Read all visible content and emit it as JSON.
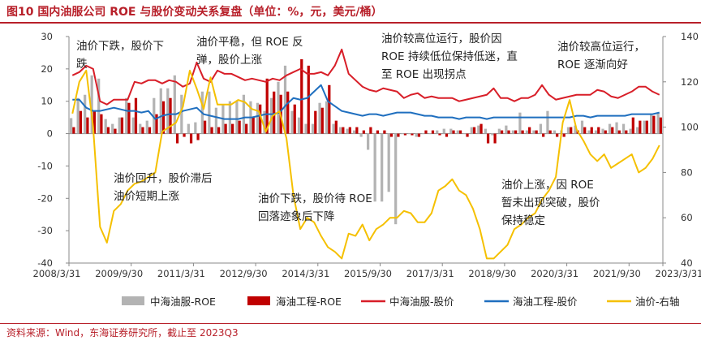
{
  "title": "图10  国内油服公司 ROE 与股价变动关系复盘（单位：%，元，美元/桶）",
  "source": "资料来源：Wind，东海证券研究所，截止至 2023Q3",
  "colors": {
    "accent": "#b8202a",
    "cosl_roe": "#b3b3b3",
    "cooec_roe": "#c00000",
    "cosl_price": "#d81e28",
    "cooec_price": "#1f6fbf",
    "oil": "#f5c000"
  },
  "chart_data": {
    "type": "bar",
    "title": "国内油服公司 ROE 与股价变动关系复盘",
    "x_ticks": [
      "2008/3/31",
      "2009/9/30",
      "2011/3/31",
      "2012/9/30",
      "2014/3/31",
      "2015/9/30",
      "2017/3/31",
      "2018/9/30",
      "2020/3/31",
      "2021/9/30",
      "2023/3/31"
    ],
    "y_left": {
      "min": -40,
      "max": 30,
      "ticks": [
        30,
        20,
        10,
        0,
        -10,
        -20,
        -30,
        -40
      ]
    },
    "y_right": {
      "min": 40,
      "max": 140,
      "ticks": [
        140,
        120,
        100,
        80,
        60,
        40
      ]
    },
    "series": [
      {
        "name": "中海油服-ROE",
        "kind": "bar",
        "axis": "left",
        "values": [
          4.8,
          11,
          12,
          18,
          17,
          4.5,
          3,
          5,
          11,
          5,
          3,
          4,
          11,
          14,
          14,
          18,
          12,
          3,
          3.5,
          13,
          13,
          8,
          9,
          10,
          10,
          12,
          10,
          9.5,
          7,
          11,
          16,
          21,
          7,
          5,
          3,
          3,
          9.5,
          10,
          3,
          2,
          1.5,
          1,
          -1,
          -5,
          -21,
          -21,
          -18,
          -28,
          0,
          0,
          -1,
          0,
          0,
          1,
          1.5,
          1.5,
          1,
          0,
          2,
          2.5,
          1.5,
          -0.5,
          1.5,
          2.5,
          1,
          6.5,
          1,
          1,
          3,
          7,
          1,
          1,
          2,
          2.5,
          4,
          1,
          1,
          1.5,
          3,
          3.5,
          3,
          1.5,
          2,
          4,
          6,
          6.5
        ]
      },
      {
        "name": "海油工程-ROE",
        "kind": "bar",
        "axis": "left",
        "values": [
          2,
          7,
          5,
          7,
          6,
          2,
          1.5,
          5,
          9.5,
          11,
          2,
          2,
          6,
          10,
          11,
          -3,
          -1,
          -3,
          -2,
          4,
          2,
          2,
          3,
          3,
          4,
          3,
          5,
          9,
          17,
          13,
          12,
          13,
          9,
          23,
          21,
          7,
          8,
          15,
          4,
          2,
          2,
          2,
          1,
          2,
          1,
          1,
          -1,
          -1,
          -0.5,
          -0.5,
          -1,
          1,
          1,
          -0.5,
          -1,
          1,
          1,
          -1,
          2,
          3,
          -3,
          -3,
          1,
          1,
          1,
          1,
          2,
          1,
          -1,
          1,
          -1,
          -1,
          2,
          1,
          2,
          2,
          2,
          1,
          2,
          1,
          1,
          5,
          4,
          4,
          5.5,
          5
        ]
      },
      {
        "name": "中海油服-股价",
        "kind": "line",
        "axis": "left",
        "values": [
          18,
          19,
          21,
          20,
          10,
          9,
          10.5,
          10.5,
          10.5,
          16,
          15.5,
          16.5,
          16.5,
          15.5,
          16.5,
          16,
          14.5,
          15.5,
          22,
          17,
          16,
          19.5,
          18.5,
          18.5,
          17.5,
          16.5,
          17,
          16.5,
          16,
          17,
          16.5,
          18,
          19,
          20,
          18.5,
          18.5,
          19,
          18,
          21,
          26,
          18.5,
          16.5,
          14.5,
          13.5,
          13,
          14,
          13.5,
          13,
          11,
          12,
          12.5,
          11,
          11.5,
          11,
          11,
          11,
          10,
          10.5,
          11,
          11.5,
          12,
          14,
          11,
          11,
          10,
          11,
          11,
          12,
          15,
          12,
          10.5,
          11,
          11.5,
          12,
          12,
          12,
          13.5,
          13,
          11.5,
          11,
          12,
          13,
          14.5,
          14.5,
          13,
          12
        ]
      },
      {
        "name": "海油工程-股价",
        "kind": "line",
        "axis": "left",
        "values": [
          10.5,
          10.5,
          8,
          7,
          7,
          7.5,
          8,
          7.5,
          7,
          7,
          6.5,
          7,
          4.5,
          5.5,
          6,
          6,
          7,
          7.5,
          8,
          6,
          5.5,
          5,
          4.5,
          4.5,
          4.5,
          5,
          5,
          5.5,
          6,
          6,
          6.5,
          9,
          11,
          10.5,
          11,
          13,
          15,
          10,
          8.5,
          7,
          6.5,
          6,
          5.5,
          6,
          6,
          5.5,
          6,
          6.5,
          6.5,
          6.5,
          6,
          5.5,
          5.5,
          5,
          5,
          5,
          4.5,
          5,
          5,
          5,
          4.5,
          5,
          5,
          5,
          5,
          5,
          5,
          5,
          5,
          5,
          5,
          5,
          5,
          5.5,
          5.5,
          5,
          5.5,
          5.5,
          5.5,
          5.5,
          5.5,
          6,
          6,
          6,
          6,
          6.5
        ]
      },
      {
        "name": "油价-右轴",
        "kind": "line",
        "axis": "right",
        "values": [
          106,
          120,
          125,
          100,
          56,
          49,
          63,
          66,
          72,
          75,
          76,
          78,
          80,
          98,
          100,
          102,
          109,
          125,
          117,
          108,
          122,
          110,
          110,
          110,
          112,
          111,
          108,
          107,
          98,
          105,
          107,
          95,
          70,
          55,
          60,
          58,
          52,
          47,
          45,
          42,
          53,
          52,
          57,
          50,
          55,
          57,
          60,
          60,
          63,
          62,
          58,
          58,
          62,
          72,
          74,
          77,
          72,
          70,
          64,
          55,
          42,
          42,
          45,
          48,
          55,
          57,
          60,
          62,
          68,
          72,
          78,
          102,
          112,
          99,
          94,
          88,
          85,
          88,
          82,
          84,
          86,
          88,
          80,
          82,
          86,
          92
        ]
      }
    ]
  },
  "annotations": [
    {
      "id": "a1",
      "lines": [
        "油价下跌，股价下",
        "跌"
      ]
    },
    {
      "id": "a2",
      "lines": [
        "油价平稳，但 ROE 反",
        "弹，股价上涨"
      ]
    },
    {
      "id": "a3",
      "lines": [
        "油价较高位运行，股价因",
        "ROE 持续低位保持低迷，直",
        "至 ROE 出现拐点"
      ]
    },
    {
      "id": "a4",
      "lines": [
        "油价较高位运行，",
        "ROE 逐渐向好"
      ]
    },
    {
      "id": "a5",
      "lines": [
        "油价回升，股价滞后",
        "油价短期上涨"
      ]
    },
    {
      "id": "a6",
      "lines": [
        "油价下跌，股价待 ROE",
        "回落迹象后下降"
      ]
    },
    {
      "id": "a7",
      "lines": [
        "油价上涨，因 ROE",
        "暂未出现突破，股价",
        "保持稳定"
      ]
    }
  ],
  "legend": [
    {
      "label": "中海油服-ROE",
      "kind": "bar",
      "color": "#b3b3b3"
    },
    {
      "label": "海油工程-ROE",
      "kind": "bar",
      "color": "#c00000"
    },
    {
      "label": "中海油服-股价",
      "kind": "line",
      "color": "#d81e28"
    },
    {
      "label": "海油工程-股价",
      "kind": "line",
      "color": "#1f6fbf"
    },
    {
      "label": "油价-右轴",
      "kind": "line",
      "color": "#f5c000"
    }
  ]
}
